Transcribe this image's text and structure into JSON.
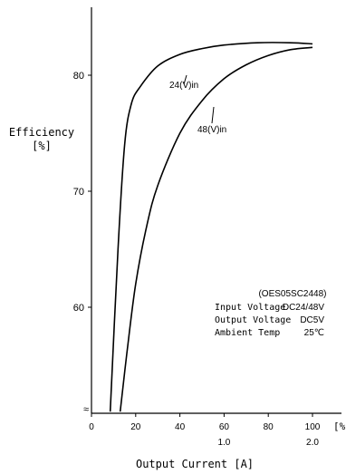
{
  "chart_data": {
    "type": "line",
    "ylabel_line1": "Efficiency",
    "ylabel_line2": "[%]",
    "xlabel": "Output Current [A]",
    "x_unit_tick": "[%]",
    "xlim": [
      0,
      110
    ],
    "ylim": [
      51,
      85
    ],
    "y_ticks": [
      60,
      70,
      80
    ],
    "x_ticks": [
      0,
      20,
      40,
      60,
      80,
      100
    ],
    "x_ticks_amps": [
      {
        "x": 60,
        "label": "1.0"
      },
      {
        "x": 100,
        "label": "2.0"
      }
    ],
    "axis_break_symbol": "≈",
    "series": [
      {
        "name": "24(V)in",
        "points": [
          [
            8.5,
            51
          ],
          [
            12,
            65
          ],
          [
            15,
            74
          ],
          [
            18,
            77.5
          ],
          [
            22,
            79
          ],
          [
            30,
            80.8
          ],
          [
            40,
            81.8
          ],
          [
            50,
            82.3
          ],
          [
            60,
            82.6
          ],
          [
            75,
            82.8
          ],
          [
            90,
            82.8
          ],
          [
            100,
            82.7
          ]
        ]
      },
      {
        "name": "48(V)in",
        "points": [
          [
            13,
            51
          ],
          [
            16,
            56
          ],
          [
            20,
            62
          ],
          [
            25,
            67
          ],
          [
            30,
            70.5
          ],
          [
            40,
            75
          ],
          [
            50,
            77.8
          ],
          [
            60,
            79.7
          ],
          [
            70,
            80.9
          ],
          [
            80,
            81.7
          ],
          [
            90,
            82.2
          ],
          [
            100,
            82.4
          ]
        ]
      }
    ],
    "info_box": {
      "model": "(OES05SC2448)",
      "rows": [
        {
          "label": "Input Voltage",
          "value": "DC24/48V"
        },
        {
          "label": "Output Voltage",
          "value": "DC5V"
        },
        {
          "label": "Ambient Temp",
          "value": "25℃"
        }
      ]
    }
  }
}
